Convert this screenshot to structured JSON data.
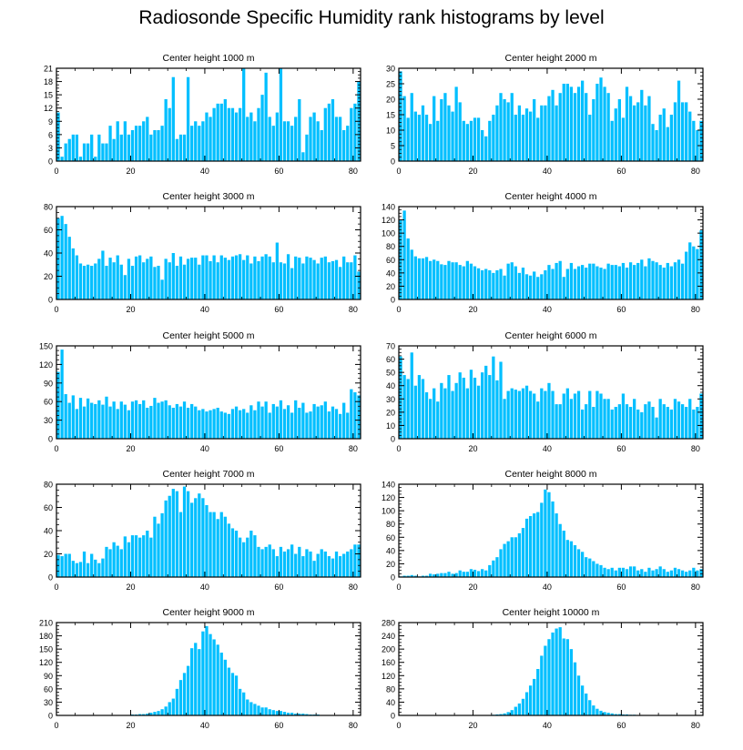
{
  "title": "Radiosonde Specific Humidity rank histograms by level",
  "colors": {
    "bar": "#00bfff",
    "axis": "#000000",
    "background": "#ffffff"
  },
  "chart_data": [
    {
      "type": "bar",
      "title": "Center height 1000 m",
      "xlim": [
        0,
        82
      ],
      "ylim": [
        0,
        21
      ],
      "xticks": [
        0,
        20,
        40,
        60,
        80
      ],
      "yticks": [
        0,
        3,
        6,
        9,
        12,
        15,
        18,
        21
      ],
      "x_start": 0,
      "values": [
        11,
        1,
        4,
        5,
        6,
        6,
        1,
        4,
        4,
        6,
        1,
        6,
        4,
        4,
        8,
        5,
        9,
        6,
        9,
        6,
        7,
        8,
        8,
        9,
        10,
        6,
        7,
        7,
        8,
        14,
        12,
        19,
        5,
        6,
        6,
        19,
        8,
        9,
        8,
        9,
        11,
        10,
        12,
        13,
        13,
        14,
        12,
        12,
        11,
        12,
        21,
        10,
        11,
        9,
        12,
        15,
        20,
        10,
        8,
        11,
        21,
        9,
        9,
        8,
        10,
        14,
        2,
        6,
        10,
        11,
        9,
        7,
        12,
        13,
        14,
        10,
        10,
        7,
        8,
        12,
        13,
        18
      ]
    },
    {
      "type": "bar",
      "title": "Center height 2000 m",
      "xlim": [
        0,
        82
      ],
      "ylim": [
        0,
        30
      ],
      "xticks": [
        0,
        20,
        40,
        60,
        80
      ],
      "yticks": [
        0,
        5,
        10,
        15,
        20,
        25,
        30
      ],
      "x_start": 0,
      "values": [
        29,
        21,
        14,
        22,
        16,
        15,
        18,
        15,
        12,
        21,
        13,
        20,
        22,
        18,
        16,
        24,
        19,
        13,
        12,
        13,
        14,
        14,
        10,
        8,
        13,
        15,
        18,
        22,
        20,
        19,
        22,
        15,
        18,
        15,
        17,
        16,
        20,
        14,
        18,
        18,
        21,
        23,
        18,
        22,
        25,
        25,
        24,
        22,
        24,
        26,
        22,
        15,
        20,
        25,
        27,
        24,
        22,
        13,
        17,
        20,
        14,
        24,
        21,
        18,
        19,
        23,
        18,
        21,
        12,
        10,
        15,
        17,
        11,
        15,
        19,
        26,
        19,
        19,
        16,
        13,
        10,
        13
      ]
    },
    {
      "type": "bar",
      "title": "Center height 3000 m",
      "xlim": [
        0,
        82
      ],
      "ylim": [
        0,
        80
      ],
      "xticks": [
        0,
        20,
        40,
        60,
        80
      ],
      "yticks": [
        0,
        20,
        40,
        60,
        80
      ],
      "x_start": 0,
      "values": [
        70,
        72,
        65,
        54,
        44,
        38,
        31,
        29,
        30,
        29,
        31,
        35,
        42,
        29,
        36,
        32,
        38,
        30,
        21,
        35,
        29,
        37,
        38,
        32,
        35,
        37,
        28,
        29,
        17,
        35,
        32,
        40,
        29,
        37,
        30,
        35,
        36,
        36,
        30,
        38,
        38,
        33,
        38,
        32,
        38,
        36,
        34,
        37,
        38,
        39,
        34,
        38,
        31,
        37,
        33,
        37,
        39,
        37,
        32,
        49,
        32,
        31,
        39,
        27,
        37,
        36,
        31,
        37,
        36,
        34,
        31,
        36,
        37,
        32,
        33,
        34,
        28,
        37,
        32,
        32,
        38,
        24
      ]
    },
    {
      "type": "bar",
      "title": "Center height 4000 m",
      "xlim": [
        0,
        82
      ],
      "ylim": [
        0,
        140
      ],
      "xticks": [
        0,
        20,
        40,
        60,
        80
      ],
      "yticks": [
        0,
        20,
        40,
        60,
        80,
        100,
        120,
        140
      ],
      "x_start": 0,
      "values": [
        120,
        134,
        92,
        75,
        65,
        62,
        62,
        64,
        58,
        60,
        58,
        53,
        52,
        58,
        56,
        56,
        52,
        50,
        58,
        54,
        50,
        47,
        44,
        46,
        44,
        40,
        44,
        46,
        36,
        54,
        56,
        50,
        40,
        48,
        38,
        36,
        42,
        34,
        38,
        44,
        52,
        46,
        55,
        58,
        34,
        46,
        55,
        46,
        50,
        52,
        48,
        54,
        54,
        50,
        48,
        46,
        54,
        52,
        52,
        50,
        55,
        48,
        56,
        52,
        55,
        60,
        50,
        62,
        58,
        56,
        52,
        48,
        55,
        50,
        56,
        60,
        54,
        72,
        86,
        80,
        76,
        104
      ]
    },
    {
      "type": "bar",
      "title": "Center height 5000 m",
      "xlim": [
        0,
        82
      ],
      "ylim": [
        0,
        150
      ],
      "xticks": [
        0,
        20,
        40,
        60,
        80
      ],
      "yticks": [
        0,
        30,
        60,
        90,
        120,
        150
      ],
      "x_start": 0,
      "values": [
        108,
        144,
        72,
        58,
        70,
        48,
        66,
        52,
        65,
        58,
        56,
        62,
        55,
        68,
        52,
        60,
        48,
        60,
        55,
        46,
        60,
        62,
        56,
        62,
        50,
        53,
        66,
        58,
        60,
        62,
        54,
        50,
        56,
        52,
        60,
        50,
        56,
        52,
        46,
        48,
        44,
        46,
        48,
        50,
        44,
        42,
        40,
        48,
        52,
        46,
        48,
        42,
        54,
        46,
        60,
        52,
        60,
        42,
        56,
        52,
        62,
        48,
        54,
        42,
        62,
        50,
        58,
        42,
        44,
        56,
        52,
        54,
        60,
        44,
        52,
        48,
        40,
        58,
        42,
        80,
        75,
        70
      ]
    },
    {
      "type": "bar",
      "title": "Center height 6000 m",
      "xlim": [
        0,
        82
      ],
      "ylim": [
        0,
        70
      ],
      "xticks": [
        0,
        20,
        40,
        60,
        80
      ],
      "yticks": [
        0,
        10,
        20,
        30,
        40,
        50,
        60,
        70
      ],
      "x_start": 0,
      "values": [
        62,
        48,
        45,
        65,
        40,
        48,
        45,
        35,
        30,
        38,
        28,
        42,
        38,
        48,
        36,
        42,
        50,
        46,
        38,
        52,
        46,
        40,
        50,
        55,
        48,
        62,
        44,
        58,
        30,
        36,
        38,
        37,
        36,
        38,
        40,
        36,
        34,
        28,
        38,
        36,
        42,
        36,
        26,
        26,
        34,
        38,
        30,
        34,
        36,
        22,
        26,
        36,
        24,
        36,
        34,
        30,
        30,
        22,
        24,
        26,
        34,
        26,
        24,
        30,
        22,
        20,
        26,
        28,
        24,
        16,
        30,
        26,
        24,
        22,
        30,
        28,
        26,
        24,
        30,
        22,
        24,
        34
      ]
    },
    {
      "type": "bar",
      "title": "Center height 7000 m",
      "xlim": [
        0,
        82
      ],
      "ylim": [
        0,
        80
      ],
      "xticks": [
        0,
        20,
        40,
        60,
        80
      ],
      "yticks": [
        0,
        20,
        40,
        60,
        80
      ],
      "x_start": 0,
      "values": [
        19,
        18,
        20,
        20,
        14,
        12,
        13,
        22,
        12,
        20,
        15,
        12,
        16,
        26,
        24,
        30,
        27,
        24,
        35,
        30,
        36,
        36,
        34,
        36,
        40,
        34,
        52,
        46,
        55,
        66,
        70,
        76,
        74,
        56,
        78,
        74,
        64,
        68,
        72,
        68,
        62,
        56,
        56,
        50,
        56,
        52,
        46,
        42,
        40,
        34,
        30,
        34,
        40,
        36,
        26,
        24,
        26,
        28,
        24,
        18,
        26,
        22,
        24,
        28,
        20,
        26,
        18,
        24,
        22,
        14,
        20,
        24,
        22,
        18,
        16,
        22,
        18,
        20,
        22,
        24,
        28,
        28
      ]
    },
    {
      "type": "bar",
      "title": "Center height 8000 m",
      "xlim": [
        0,
        82
      ],
      "ylim": [
        0,
        140
      ],
      "xticks": [
        0,
        20,
        40,
        60,
        80
      ],
      "yticks": [
        0,
        20,
        40,
        60,
        80,
        100,
        120,
        140
      ],
      "x_start": 0,
      "values": [
        1,
        2,
        2,
        3,
        2,
        1,
        2,
        2,
        5,
        4,
        5,
        6,
        6,
        8,
        5,
        6,
        10,
        8,
        8,
        12,
        11,
        9,
        12,
        10,
        18,
        25,
        30,
        42,
        50,
        54,
        60,
        60,
        66,
        74,
        88,
        92,
        96,
        98,
        112,
        132,
        128,
        114,
        96,
        80,
        70,
        56,
        54,
        48,
        42,
        38,
        30,
        28,
        24,
        20,
        18,
        14,
        12,
        14,
        10,
        14,
        14,
        12,
        16,
        16,
        10,
        12,
        8,
        14,
        10,
        12,
        16,
        12,
        8,
        10,
        14,
        12,
        10,
        8,
        10,
        14,
        10,
        12
      ]
    },
    {
      "type": "bar",
      "title": "Center height 9000 m",
      "xlim": [
        0,
        82
      ],
      "ylim": [
        0,
        210
      ],
      "xticks": [
        0,
        20,
        40,
        60,
        80
      ],
      "yticks": [
        0,
        30,
        60,
        90,
        120,
        150,
        180,
        210
      ],
      "x_start": 0,
      "values": [
        0,
        0,
        0,
        0,
        0,
        0,
        0,
        0,
        0,
        0,
        0,
        0,
        0,
        0,
        0,
        0,
        0,
        0,
        0,
        0,
        2,
        2,
        3,
        3,
        4,
        6,
        8,
        10,
        14,
        20,
        30,
        38,
        60,
        80,
        96,
        112,
        152,
        164,
        150,
        190,
        202,
        184,
        172,
        160,
        142,
        126,
        108,
        96,
        90,
        60,
        52,
        36,
        30,
        26,
        22,
        18,
        18,
        14,
        12,
        10,
        10,
        8,
        6,
        6,
        4,
        4,
        4,
        3,
        2,
        2,
        2,
        1,
        1,
        1,
        0,
        0,
        0,
        0,
        0,
        0,
        0,
        0
      ]
    },
    {
      "type": "bar",
      "title": "Center height 10000 m",
      "xlim": [
        0,
        82
      ],
      "ylim": [
        0,
        280
      ],
      "xticks": [
        0,
        20,
        40,
        60,
        80
      ],
      "yticks": [
        0,
        40,
        80,
        120,
        160,
        200,
        240,
        280
      ],
      "x_start": 0,
      "values": [
        0,
        0,
        0,
        0,
        0,
        0,
        0,
        0,
        0,
        0,
        0,
        0,
        0,
        0,
        0,
        0,
        0,
        0,
        0,
        0,
        0,
        0,
        0,
        1,
        1,
        2,
        3,
        4,
        6,
        10,
        16,
        26,
        36,
        50,
        70,
        90,
        110,
        140,
        180,
        210,
        230,
        250,
        262,
        266,
        232,
        230,
        200,
        160,
        120,
        90,
        66,
        46,
        30,
        20,
        14,
        10,
        8,
        6,
        4,
        4,
        3,
        3,
        2,
        2,
        1,
        1,
        1,
        1,
        1,
        1,
        0,
        0,
        0,
        0,
        0,
        0,
        0,
        0,
        0,
        0,
        0,
        0
      ]
    }
  ]
}
